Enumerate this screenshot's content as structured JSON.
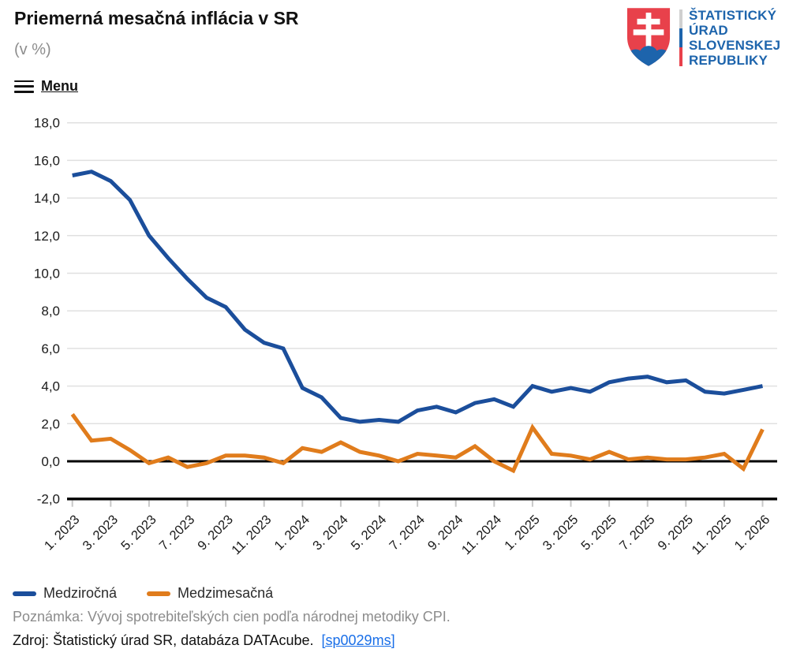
{
  "header": {
    "title": "Priemerná mesačná inflácia v SR",
    "subtitle": "(v %)",
    "logo": {
      "lines": [
        "ŠTATISTICKÝ",
        "ÚRAD",
        "SLOVENSKEJ",
        "REPUBLIKY"
      ],
      "shield_red": "#e8414b",
      "shield_blue": "#1d64ac",
      "divider_gray": "#d0d0d0"
    }
  },
  "menu": {
    "label": "Menu"
  },
  "chart_data": {
    "type": "line",
    "title": "Priemerná mesačná inflácia v SR (v %)",
    "xlabel": "",
    "ylabel": "",
    "ylim": [
      -2.0,
      18.0
    ],
    "grid": true,
    "legend_position": "bottom",
    "y_ticks": [
      18,
      16,
      14,
      12,
      10,
      8,
      6,
      4,
      2,
      0,
      -2
    ],
    "y_tick_labels": [
      "18,0",
      "16,0",
      "14,0",
      "12,0",
      "10,0",
      "8,0",
      "6,0",
      "4,0",
      "2,0",
      "0,0",
      "-2,0"
    ],
    "x_tick_indices": [
      0,
      2,
      4,
      6,
      8,
      10,
      12,
      14,
      16,
      18,
      20,
      22,
      24,
      26,
      28,
      30,
      32,
      34,
      36
    ],
    "x_tick_labels": [
      "1. 2023",
      "3. 2023",
      "5. 2023",
      "7. 2023",
      "9. 2023",
      "11. 2023",
      "1. 2024",
      "3. 2024",
      "5. 2024",
      "7. 2024",
      "9. 2024",
      "11. 2024",
      "1. 2025",
      "3. 2025",
      "5. 2025",
      "7. 2025",
      "9. 2025",
      "11. 2025",
      "1. 2026"
    ],
    "categories": [
      "1. 2023",
      "2. 2023",
      "3. 2023",
      "4. 2023",
      "5. 2023",
      "6. 2023",
      "7. 2023",
      "8. 2023",
      "9. 2023",
      "10. 2023",
      "11. 2023",
      "12. 2023",
      "1. 2024",
      "2. 2024",
      "3. 2024",
      "4. 2024",
      "5. 2024",
      "6. 2024",
      "7. 2024",
      "8. 2024",
      "9. 2024",
      "10. 2024",
      "11. 2024",
      "12. 2024",
      "1. 2025",
      "2. 2025",
      "3. 2025",
      "4. 2025",
      "5. 2025",
      "6. 2025",
      "7. 2025",
      "8. 2025",
      "9. 2025",
      "10. 2025",
      "11. 2025",
      "12. 2025",
      "1. 2026"
    ],
    "series": [
      {
        "name": "Medziročná",
        "color": "#1b4e9b",
        "values": [
          15.2,
          15.4,
          14.9,
          13.9,
          12.0,
          10.8,
          9.7,
          8.7,
          8.2,
          7.0,
          6.3,
          6.0,
          3.9,
          3.4,
          2.3,
          2.1,
          2.2,
          2.1,
          2.7,
          2.9,
          2.6,
          3.1,
          3.3,
          2.9,
          4.0,
          3.7,
          3.9,
          3.7,
          4.2,
          4.4,
          4.5,
          4.2,
          4.3,
          3.7,
          3.6,
          3.8,
          4.0
        ]
      },
      {
        "name": "Medzimesačná",
        "color": "#e07c1c",
        "values": [
          2.5,
          1.1,
          1.2,
          0.6,
          -0.1,
          0.2,
          -0.3,
          -0.1,
          0.3,
          0.3,
          0.2,
          -0.1,
          0.7,
          0.5,
          1.0,
          0.5,
          0.3,
          0.0,
          0.4,
          0.3,
          0.2,
          0.8,
          0.0,
          -0.5,
          1.8,
          0.4,
          0.3,
          0.1,
          0.5,
          0.1,
          0.2,
          0.1,
          0.1,
          0.2,
          0.4,
          -0.4,
          1.7
        ]
      }
    ],
    "colors": {
      "gridline": "#e0e0e0",
      "zero_line": "#000000",
      "axis_line": "#000000",
      "tick": "#c8c8c8",
      "tick_label": "#1a1a1a"
    }
  },
  "legend": {
    "items": [
      {
        "label": "Medziročná",
        "color": "#1b4e9b"
      },
      {
        "label": "Medzimesačná",
        "color": "#e07c1c"
      }
    ]
  },
  "footer": {
    "note": "Poznámka: Vývoj spotrebiteľských cien podľa národnej metodiky CPI.",
    "source_prefix": "Zdroj: Štatistický úrad SR, databáza DATAcube.",
    "source_link": "[sp0029ms]"
  }
}
